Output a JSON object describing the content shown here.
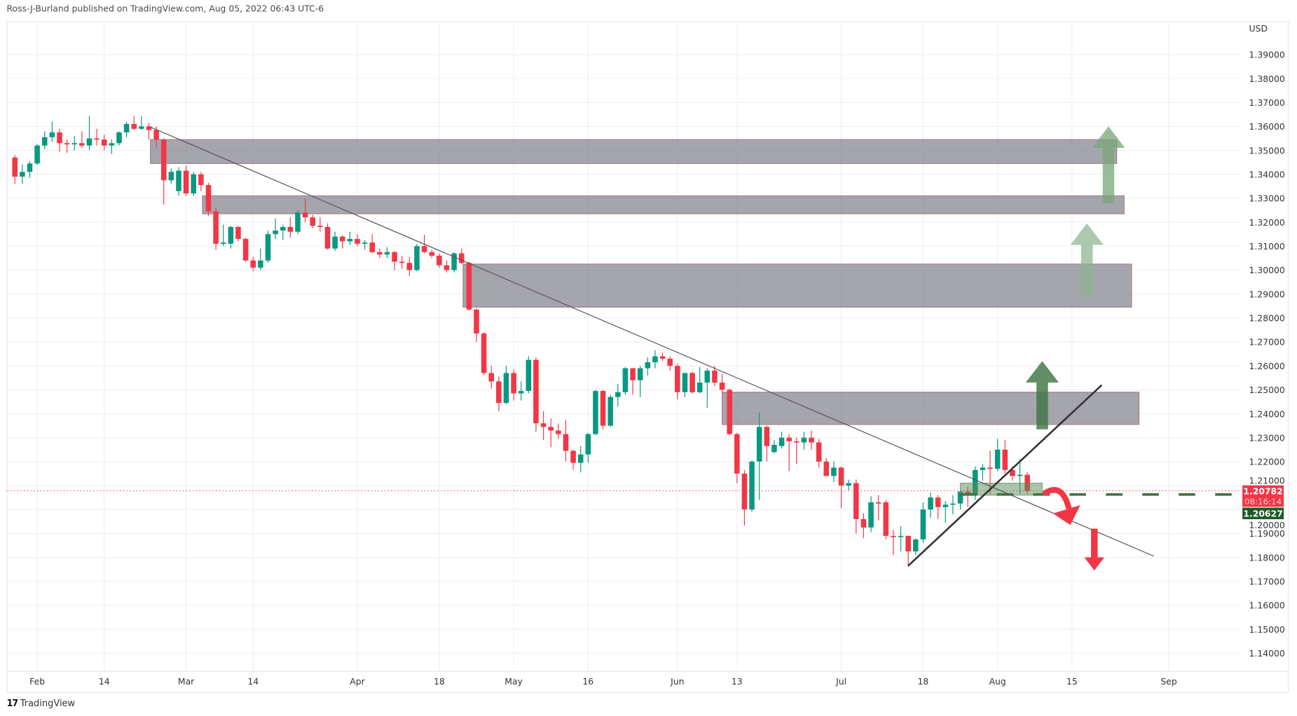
{
  "header": {
    "text": "Ross-J-Burland published on TradingView.com, Aug 05, 2022 06:43 UTC-6"
  },
  "footer": {
    "logo_mark": "17",
    "brand": "TradingView"
  },
  "price_axis": {
    "currency": "USD"
  },
  "labels": {
    "last_price": "1.20782",
    "countdown": "08:16:14",
    "level_price": "1.20627"
  },
  "colors": {
    "up": "#089981",
    "down": "#F23645",
    "zone": "#7a7a88",
    "arrow_dark": "#3f7544",
    "arrow_light": "#9dbf9f",
    "level": "#3f7544",
    "label_green": "#1e5a26"
  },
  "chart_data": {
    "type": "candlestick",
    "title": "",
    "ylabel": "USD",
    "ylim": [
      1.13,
      1.4
    ],
    "grid": true,
    "y_ticks": [
      "1.39000",
      "1.38000",
      "1.37000",
      "1.36000",
      "1.35000",
      "1.34000",
      "1.33000",
      "1.32000",
      "1.31000",
      "1.30000",
      "1.29000",
      "1.28000",
      "1.27000",
      "1.26000",
      "1.25000",
      "1.24000",
      "1.23000",
      "1.22000",
      "1.21000",
      "1.20000",
      "1.19000",
      "1.18000",
      "1.17000",
      "1.16000",
      "1.15000",
      "1.14000"
    ],
    "x_ticks": [
      {
        "label": "Feb",
        "bar": 0
      },
      {
        "label": "14",
        "bar": 9
      },
      {
        "label": "Mar",
        "bar": 20
      },
      {
        "label": "14",
        "bar": 29
      },
      {
        "label": "Apr",
        "bar": 43
      },
      {
        "label": "18",
        "bar": 54
      },
      {
        "label": "May",
        "bar": 64
      },
      {
        "label": "16",
        "bar": 74
      },
      {
        "label": "Jun",
        "bar": 86
      },
      {
        "label": "13",
        "bar": 94
      },
      {
        "label": "Jul",
        "bar": 108
      },
      {
        "label": "18",
        "bar": 119
      },
      {
        "label": "Aug",
        "bar": 129
      },
      {
        "label": "15",
        "bar": 139
      },
      {
        "label": "Sep",
        "bar": 152
      }
    ],
    "first_bar_index": -4,
    "candles_ohlc": [
      [
        1.35,
        1.3525,
        1.345,
        1.347
      ],
      [
        1.347,
        1.348,
        1.336,
        1.339
      ],
      [
        1.339,
        1.344,
        1.336,
        1.341
      ],
      [
        1.341,
        1.3455,
        1.3385,
        1.3445
      ],
      [
        1.3445,
        1.3528,
        1.344,
        1.352
      ],
      [
        1.352,
        1.358,
        1.3505,
        1.3555
      ],
      [
        1.3555,
        1.362,
        1.3535,
        1.3575
      ],
      [
        1.3575,
        1.359,
        1.3495,
        1.353
      ],
      [
        1.353,
        1.3545,
        1.349,
        1.3525
      ],
      [
        1.3525,
        1.356,
        1.35,
        1.353
      ],
      [
        1.353,
        1.358,
        1.351,
        1.352
      ],
      [
        1.352,
        1.3643,
        1.35,
        1.355
      ],
      [
        1.355,
        1.359,
        1.352,
        1.3545
      ],
      [
        1.3545,
        1.3565,
        1.35,
        1.352
      ],
      [
        1.352,
        1.3545,
        1.3485,
        1.353
      ],
      [
        1.353,
        1.358,
        1.352,
        1.3575
      ],
      [
        1.3575,
        1.362,
        1.3555,
        1.361
      ],
      [
        1.361,
        1.3643,
        1.3585,
        1.359
      ],
      [
        1.359,
        1.3643,
        1.3585,
        1.36
      ],
      [
        1.36,
        1.3615,
        1.3545,
        1.3585
      ],
      [
        1.3585,
        1.36,
        1.351,
        1.3545
      ],
      [
        1.3545,
        1.355,
        1.3273,
        1.3375
      ],
      [
        1.3375,
        1.3425,
        1.336,
        1.341
      ],
      [
        1.333,
        1.343,
        1.331,
        1.3415
      ],
      [
        1.3415,
        1.3437,
        1.331,
        1.332
      ],
      [
        1.332,
        1.341,
        1.331,
        1.34
      ],
      [
        1.34,
        1.341,
        1.333,
        1.3355
      ],
      [
        1.3355,
        1.3365,
        1.3225,
        1.3245
      ],
      [
        1.3245,
        1.326,
        1.3085,
        1.311
      ],
      [
        1.311,
        1.319,
        1.31,
        1.3115
      ],
      [
        1.311,
        1.3185,
        1.309,
        1.318
      ],
      [
        1.318,
        1.3185,
        1.312,
        1.313
      ],
      [
        1.313,
        1.3135,
        1.3035,
        1.304
      ],
      [
        1.304,
        1.3055,
        1.2995,
        1.301
      ],
      [
        1.301,
        1.309,
        1.3,
        1.304
      ],
      [
        1.304,
        1.3165,
        1.303,
        1.315
      ],
      [
        1.315,
        1.3215,
        1.313,
        1.3165
      ],
      [
        1.3165,
        1.319,
        1.3125,
        1.318
      ],
      [
        1.318,
        1.322,
        1.3135,
        1.316
      ],
      [
        1.316,
        1.325,
        1.315,
        1.324
      ],
      [
        1.324,
        1.3298,
        1.32,
        1.322
      ],
      [
        1.322,
        1.323,
        1.3175,
        1.3185
      ],
      [
        1.3185,
        1.322,
        1.316,
        1.318
      ],
      [
        1.318,
        1.3195,
        1.3085,
        1.309
      ],
      [
        1.309,
        1.316,
        1.308,
        1.314
      ],
      [
        1.314,
        1.3145,
        1.309,
        1.312
      ],
      [
        1.312,
        1.316,
        1.3105,
        1.313
      ],
      [
        1.313,
        1.315,
        1.31,
        1.311
      ],
      [
        1.311,
        1.3125,
        1.3085,
        1.3115
      ],
      [
        1.3115,
        1.315,
        1.307,
        1.3075
      ],
      [
        1.3075,
        1.309,
        1.305,
        1.3065
      ],
      [
        1.3065,
        1.3095,
        1.305,
        1.3075
      ],
      [
        1.3075,
        1.308,
        1.3,
        1.3035
      ],
      [
        1.3035,
        1.306,
        1.3005,
        1.303
      ],
      [
        1.303,
        1.3055,
        1.2975,
        1.3
      ],
      [
        1.3,
        1.311,
        1.2995,
        1.31
      ],
      [
        1.31,
        1.3148,
        1.307,
        1.3075
      ],
      [
        1.3075,
        1.3085,
        1.305,
        1.306
      ],
      [
        1.306,
        1.307,
        1.301,
        1.302
      ],
      [
        1.302,
        1.304,
        1.299,
        1.3
      ],
      [
        1.3,
        1.3075,
        1.299,
        1.307
      ],
      [
        1.307,
        1.309,
        1.3025,
        1.303
      ],
      [
        1.303,
        1.3035,
        1.283,
        1.2835
      ],
      [
        1.2835,
        1.284,
        1.27,
        1.2735
      ],
      [
        1.2735,
        1.274,
        1.256,
        1.257
      ],
      [
        1.257,
        1.26,
        1.2505,
        1.2535
      ],
      [
        1.2535,
        1.2555,
        1.241,
        1.2445
      ],
      [
        1.2445,
        1.26,
        1.244,
        1.257
      ],
      [
        1.257,
        1.2585,
        1.2455,
        1.2485
      ],
      [
        1.2485,
        1.2535,
        1.2455,
        1.2495
      ],
      [
        1.2495,
        1.264,
        1.2485,
        1.2625
      ],
      [
        1.2625,
        1.2635,
        1.2325,
        1.236
      ],
      [
        1.236,
        1.241,
        1.229,
        1.2345
      ],
      [
        1.2345,
        1.238,
        1.226,
        1.233
      ],
      [
        1.233,
        1.236,
        1.2295,
        1.2315
      ],
      [
        1.2315,
        1.2375,
        1.22,
        1.2245
      ],
      [
        1.2245,
        1.225,
        1.2165,
        1.2195
      ],
      [
        1.2195,
        1.2265,
        1.2155,
        1.223
      ],
      [
        1.223,
        1.232,
        1.2195,
        1.2315
      ],
      [
        1.2315,
        1.25,
        1.231,
        1.2495
      ],
      [
        1.2495,
        1.25,
        1.2335,
        1.235
      ],
      [
        1.235,
        1.248,
        1.2345,
        1.247
      ],
      [
        1.247,
        1.2525,
        1.243,
        1.249
      ],
      [
        1.249,
        1.2595,
        1.248,
        1.259
      ],
      [
        1.259,
        1.259,
        1.248,
        1.254
      ],
      [
        1.254,
        1.26,
        1.247,
        1.259
      ],
      [
        1.259,
        1.2635,
        1.256,
        1.2615
      ],
      [
        1.2615,
        1.2665,
        1.259,
        1.264
      ],
      [
        1.264,
        1.2655,
        1.262,
        1.263
      ],
      [
        1.263,
        1.264,
        1.258,
        1.26
      ],
      [
        1.26,
        1.261,
        1.246,
        1.249
      ],
      [
        1.249,
        1.257,
        1.247,
        1.257
      ],
      [
        1.257,
        1.2575,
        1.2485,
        1.249
      ],
      [
        1.249,
        1.2595,
        1.2485,
        1.253
      ],
      [
        1.253,
        1.259,
        1.2425,
        1.258
      ],
      [
        1.258,
        1.26,
        1.2515,
        1.253
      ],
      [
        1.253,
        1.2565,
        1.249,
        1.25
      ],
      [
        1.25,
        1.2505,
        1.231,
        1.2315
      ],
      [
        1.2315,
        1.232,
        1.211,
        1.215
      ],
      [
        1.215,
        1.2165,
        1.1933,
        1.2
      ],
      [
        1.2,
        1.2205,
        1.199,
        1.22
      ],
      [
        1.22,
        1.2405,
        1.204,
        1.2345
      ],
      [
        1.2345,
        1.235,
        1.22,
        1.2265
      ],
      [
        1.224,
        1.229,
        1.2235,
        1.227
      ],
      [
        1.2265,
        1.2325,
        1.2255,
        1.23
      ],
      [
        1.23,
        1.2315,
        1.216,
        1.2285
      ],
      [
        1.2285,
        1.23,
        1.219,
        1.228
      ],
      [
        1.228,
        1.2325,
        1.225,
        1.23
      ],
      [
        1.23,
        1.233,
        1.225,
        1.228
      ],
      [
        1.228,
        1.2295,
        1.2175,
        1.22
      ],
      [
        1.22,
        1.2215,
        1.214,
        1.214
      ],
      [
        1.214,
        1.22,
        1.2115,
        1.2175
      ],
      [
        1.2175,
        1.218,
        1.2005,
        1.21
      ],
      [
        1.21,
        1.2125,
        1.208,
        1.211
      ],
      [
        1.211,
        1.2125,
        1.19,
        1.196
      ],
      [
        1.196,
        1.1985,
        1.188,
        1.1925
      ],
      [
        1.1925,
        1.2055,
        1.1905,
        1.203
      ],
      [
        1.203,
        1.206,
        1.1955,
        1.2028
      ],
      [
        1.203,
        1.204,
        1.1875,
        1.189
      ],
      [
        1.189,
        1.1915,
        1.181,
        1.1888
      ],
      [
        1.1885,
        1.193,
        1.1825,
        1.189
      ],
      [
        1.189,
        1.189,
        1.176,
        1.1825
      ],
      [
        1.1825,
        1.188,
        1.181,
        1.1875
      ],
      [
        1.1875,
        1.203,
        1.186,
        1.2
      ],
      [
        1.2,
        1.207,
        1.1965,
        1.205
      ],
      [
        1.205,
        1.206,
        1.196,
        1.201
      ],
      [
        1.201,
        1.2035,
        1.1945,
        1.202
      ],
      [
        1.202,
        1.206,
        1.198,
        1.2025
      ],
      [
        1.2025,
        1.208,
        1.2,
        1.2075
      ],
      [
        1.2075,
        1.2095,
        1.201,
        1.206
      ],
      [
        1.206,
        1.218,
        1.204,
        1.2165
      ],
      [
        1.2165,
        1.219,
        1.212,
        1.2175
      ],
      [
        1.2175,
        1.2245,
        1.2065,
        1.217
      ],
      [
        1.217,
        1.2295,
        1.216,
        1.225
      ],
      [
        1.225,
        1.229,
        1.215,
        1.2165
      ],
      [
        1.2165,
        1.218,
        1.212,
        1.214
      ],
      [
        1.214,
        1.221,
        1.2065,
        1.2145
      ],
      [
        1.2145,
        1.2155,
        1.2065,
        1.2078
      ]
    ],
    "last_price": 1.20782,
    "level": 1.20627,
    "zones": [
      {
        "from_bar": 15.2,
        "to_bar": 145,
        "top": 1.3545,
        "bottom": 1.3445
      },
      {
        "from_bar": 22.2,
        "to_bar": 146,
        "top": 1.331,
        "bottom": 1.3235
      },
      {
        "from_bar": 57.2,
        "to_bar": 147,
        "top": 1.3025,
        "bottom": 1.2845
      },
      {
        "from_bar": 92,
        "to_bar": 148,
        "top": 1.249,
        "bottom": 1.2355
      }
    ],
    "small_zone": {
      "from_bar": 124,
      "to_bar": 135,
      "top": 1.211,
      "bottom": 1.206
    },
    "trendlines": [
      {
        "name": "downtrend",
        "from": [
          15,
          1.36
        ],
        "to": [
          150,
          1.1805
        ]
      },
      {
        "name": "uptrend",
        "from": [
          117,
          1.1765
        ],
        "to": [
          143,
          1.252
        ]
      }
    ],
    "up_arrows": [
      {
        "bar": 135,
        "from": 1.2335,
        "to": 1.262,
        "tone": "dark"
      },
      {
        "bar": 141,
        "from": 1.289,
        "to": 1.3195,
        "tone": "light"
      },
      {
        "bar": 143.9,
        "from": 1.328,
        "to": 1.36,
        "tone": "mid"
      }
    ],
    "down_arrow": {
      "bar": 142,
      "from": 1.192,
      "to": 1.1745
    }
  }
}
